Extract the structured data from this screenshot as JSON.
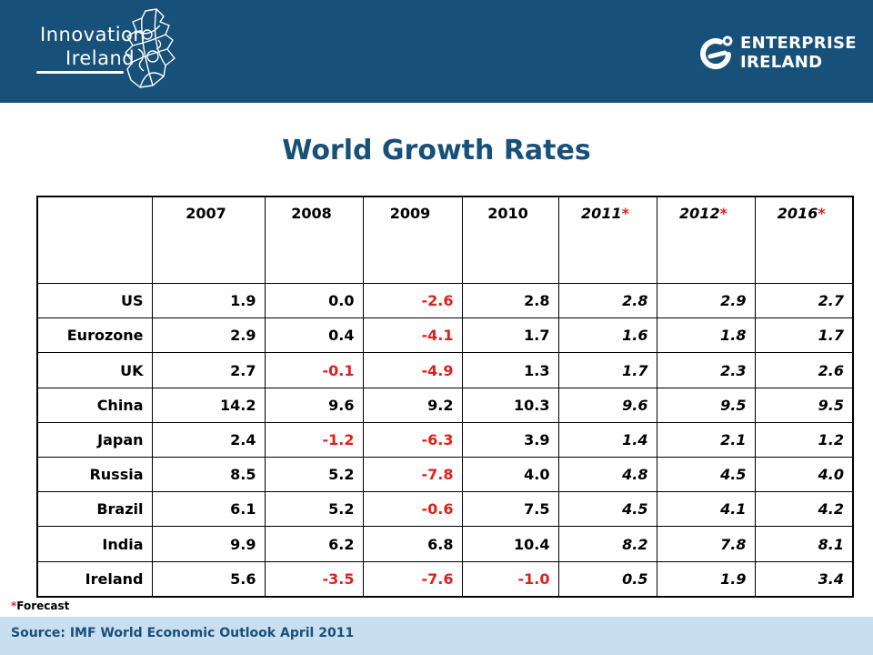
{
  "header": {
    "left_logo": {
      "line1": "Innovation",
      "line2": "Ireland"
    },
    "right_logo": {
      "line1": "ENTERPRISE",
      "line2": "IRELAND"
    }
  },
  "title": "World Growth Rates",
  "colors": {
    "header_bg": "#175079",
    "negative": "#e0201b",
    "source_bg": "#c9dff0",
    "title": "#175079"
  },
  "table": {
    "columns": [
      "2007",
      "2008",
      "2009",
      "2010",
      "2011",
      "2012",
      "2016"
    ],
    "forecast_mark": "*",
    "rows": [
      {
        "label": "US",
        "values": [
          "1.9",
          "0.0",
          "-2.6",
          "2.8",
          "2.8",
          "2.9",
          "2.7"
        ]
      },
      {
        "label": "Eurozone",
        "values": [
          "2.9",
          "0.4",
          "-4.1",
          "1.7",
          "1.6",
          "1.8",
          "1.7"
        ]
      },
      {
        "label": "UK",
        "values": [
          "2.7",
          "-0.1",
          "-4.9",
          "1.3",
          "1.7",
          "2.3",
          "2.6"
        ]
      },
      {
        "label": "China",
        "values": [
          "14.2",
          "9.6",
          "9.2",
          "10.3",
          "9.6",
          "9.5",
          "9.5"
        ]
      },
      {
        "label": "Japan",
        "values": [
          "2.4",
          "-1.2",
          "-6.3",
          "3.9",
          "1.4",
          "2.1",
          "1.2"
        ]
      },
      {
        "label": "Russia",
        "values": [
          "8.5",
          "5.2",
          "-7.8",
          "4.0",
          "4.8",
          "4.5",
          "4.0"
        ]
      },
      {
        "label": "Brazil",
        "values": [
          "6.1",
          "5.2",
          "-0.6",
          "7.5",
          "4.5",
          "4.1",
          "4.2"
        ]
      },
      {
        "label": "India",
        "values": [
          "9.9",
          "6.2",
          "6.8",
          "10.4",
          "8.2",
          "7.8",
          "8.1"
        ]
      },
      {
        "label": "Ireland",
        "values": [
          "5.6",
          "-3.5",
          "-7.6",
          "-1.0",
          "0.5",
          "1.9",
          "3.4"
        ]
      }
    ]
  },
  "footnote": {
    "star": "*",
    "text": "Forecast"
  },
  "source": "Source: IMF World Economic Outlook April 2011"
}
